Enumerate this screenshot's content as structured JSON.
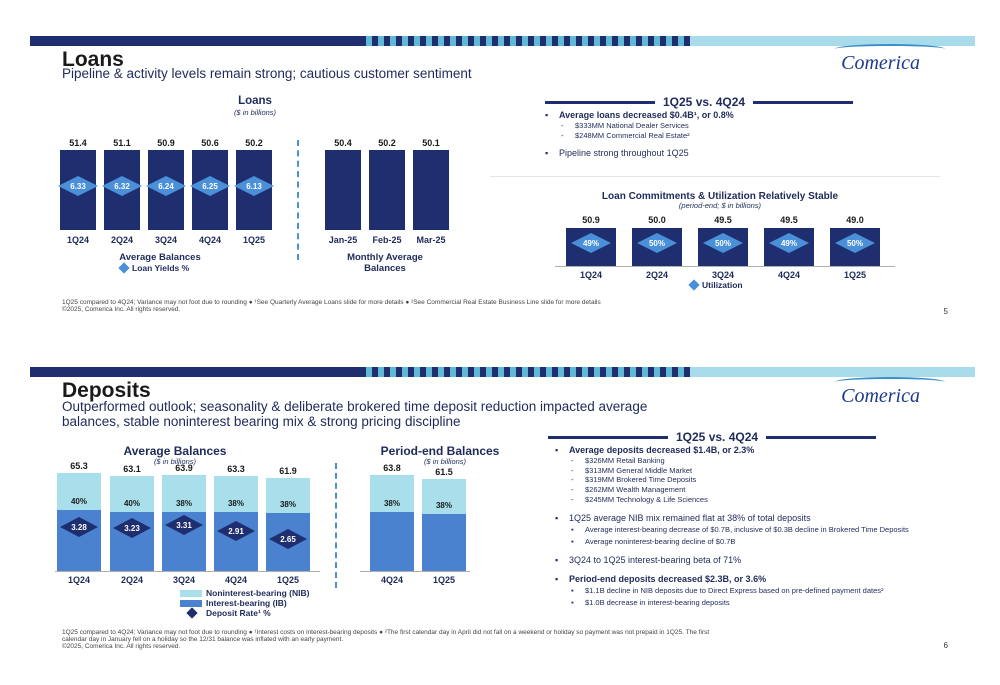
{
  "slide1": {
    "title": "Loans",
    "subtitle": "Pipeline & activity levels remain strong; cautious customer sentiment",
    "logo": "Comerica",
    "loans_chart": {
      "title": "Loans",
      "subtitle": "($ in billions)",
      "group_left_label": "Average Balances",
      "legend_label": "Loan Yields %",
      "group_right_label": "Monthly Average Balances"
    },
    "right": {
      "header": "1Q25 vs. 4Q24",
      "bullet1": "Average loans decreased $0.4B¹, or 0.8%",
      "sub1": "$333MM National Dealer Services",
      "sub2": "$248MM Commercial Real Estate²",
      "bullet2": "Pipeline strong throughout 1Q25"
    },
    "commit_chart": {
      "title": "Loan Commitments & Utilization Relatively Stable",
      "subtitle": "(period-end; $ in billions)",
      "legend_label": "Utilization"
    },
    "footnote": "1Q25 compared to 4Q24; Variance may not foot due to rounding ● ¹See Quarterly Average Loans slide for more details ● ²See Commercial Real Estate Business Line slide for more details",
    "copyright": "©2025, Comerica Inc. All rights reserved.",
    "page": "5"
  },
  "slide2": {
    "title": "Deposits",
    "subtitle_line1": "Outperformed outlook; seasonality & deliberate brokered time deposit reduction impacted average",
    "subtitle_line2": "balances, stable noninterest bearing mix & strong pricing discipline",
    "logo": "Comerica",
    "avg_title": "Average Balances",
    "avg_sub": "($ in billions)",
    "pe_title": "Period-end Balances",
    "pe_sub": "($ in billions)",
    "legend": {
      "nib": "Noninterest-bearing (NIB)",
      "ib": "Interest-bearing (IB)",
      "rate": "Deposit Rate¹ %"
    },
    "right": {
      "header": "1Q25 vs. 4Q24",
      "b1": "Average deposits decreased $1.4B, or 2.3%",
      "b1_subs": [
        "$326MM Retail Banking",
        "$313MM General Middle Market",
        "$319MM Brokered Time Deposits",
        "$262MM Wealth Management",
        "$245MM Technology & Life Sciences"
      ],
      "b2": "1Q25 average NIB mix remained flat at 38% of total deposits",
      "b2_subs": [
        "Average interest-bearing decrease of $0.7B, inclusive of $0.3B decline in Brokered Time Deposits",
        "Average noninterest-bearing decline of $0.7B"
      ],
      "b3": "3Q24 to 1Q25 interest-bearing beta of 71%",
      "b4": "Period-end deposits decreased $2.3B, or 3.6%",
      "b4_subs": [
        "$1.1B decline in NIB deposits due to Direct Express based on pre-defined payment dates²",
        "$1.0B decrease in interest-bearing deposits"
      ]
    },
    "footnote_line1": "1Q25 compared to 4Q24; Variance may not foot due to rounding ● ¹Interest costs on interest-bearing deposits ● ²The first calendar day in April did not fall on a weekend or holiday so payment was not prepaid in 1Q25. The first",
    "footnote_line2": "calendar day in January fell on a holiday so the 12/31 balance was inflated with an early payment.",
    "copyright": "©2025, Comerica Inc. All rights reserved.",
    "page": "6"
  },
  "chart_data": [
    {
      "type": "bar",
      "title": "Loans",
      "subtitle": "($ in billions)",
      "categories": [
        "1Q24",
        "2Q24",
        "3Q24",
        "4Q24",
        "1Q25",
        "Jan-25",
        "Feb-25",
        "Mar-25"
      ],
      "series": [
        {
          "name": "Average Balances",
          "values": [
            51.4,
            51.1,
            50.9,
            50.6,
            50.2,
            null,
            null,
            null
          ]
        },
        {
          "name": "Monthly Average Balances",
          "values": [
            null,
            null,
            null,
            null,
            null,
            50.4,
            50.2,
            50.1
          ]
        },
        {
          "name": "Loan Yields %",
          "values": [
            6.33,
            6.32,
            6.24,
            6.25,
            6.13,
            null,
            null,
            null
          ]
        }
      ]
    },
    {
      "type": "bar",
      "title": "Loan Commitments & Utilization Relatively Stable",
      "subtitle": "(period-end; $ in billions)",
      "categories": [
        "1Q24",
        "2Q24",
        "3Q24",
        "4Q24",
        "1Q25"
      ],
      "series": [
        {
          "name": "",
          "values": [
            50.9,
            50.0,
            49.5,
            49.5,
            49.0
          ]
        },
        {
          "name": "Utilization",
          "values": [
            "49%",
            "50%",
            "50%",
            "49%",
            "50%"
          ]
        }
      ]
    },
    {
      "type": "bar",
      "title": "Average Balances",
      "subtitle": "($ in billions)",
      "categories": [
        "1Q24",
        "2Q24",
        "3Q24",
        "4Q24",
        "1Q25"
      ],
      "totals": [
        65.3,
        63.1,
        63.9,
        63.3,
        61.9
      ],
      "series": [
        {
          "name": "Noninterest-bearing (NIB)",
          "values": [
            "40%",
            "40%",
            "38%",
            "38%",
            "38%"
          ]
        },
        {
          "name": "Deposit Rate¹ %",
          "values": [
            3.28,
            3.23,
            3.31,
            2.91,
            2.65
          ]
        }
      ]
    },
    {
      "type": "bar",
      "title": "Period-end Balances",
      "subtitle": "($ in billions)",
      "categories": [
        "4Q24",
        "1Q25"
      ],
      "totals": [
        63.8,
        61.5
      ],
      "series": [
        {
          "name": "Noninterest-bearing (NIB)",
          "values": [
            "38%",
            "38%"
          ]
        }
      ]
    }
  ]
}
